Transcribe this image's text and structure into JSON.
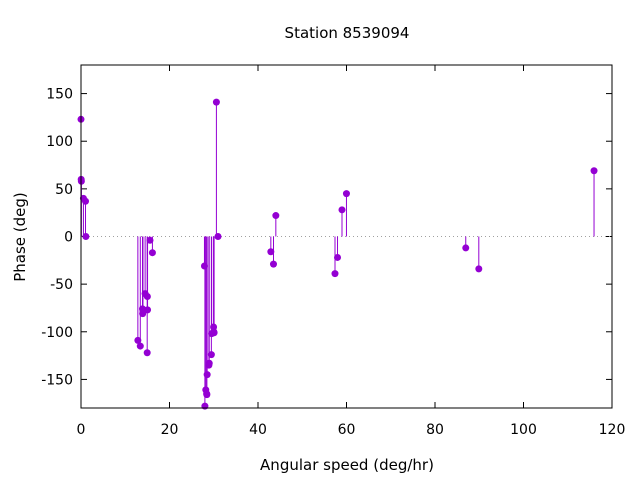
{
  "chart_data": {
    "type": "scatter",
    "style": "impulses-with-points",
    "title": "Station 8539094",
    "xlabel": "Angular speed (deg/hr)",
    "ylabel": "Phase (deg)",
    "xlim": [
      0,
      120
    ],
    "ylim": [
      -180,
      180
    ],
    "xticks": [
      0,
      20,
      40,
      60,
      80,
      100,
      120
    ],
    "yticks": [
      -150,
      -100,
      -50,
      0,
      50,
      100,
      150
    ],
    "zero_line": true,
    "grid": false,
    "legend": "none",
    "color": "#9400d3",
    "series": [
      {
        "x": [
          0.0,
          0.04,
          0.08,
          0.55,
          1.02,
          1.1,
          12.85,
          13.4,
          13.9,
          13.94,
          14.0,
          14.49,
          14.96,
          15.0,
          15.04,
          15.59,
          16.14,
          27.9,
          28.0,
          28.2,
          28.4,
          28.44,
          28.51,
          28.9,
          28.98,
          29.46,
          29.53,
          29.96,
          30.0,
          30.08,
          30.6,
          30.96,
          42.9,
          43.5,
          44.03,
          57.4,
          57.97,
          58.98,
          59.99,
          86.95,
          89.9,
          115.94
        ],
        "y": [
          123,
          60,
          58,
          40,
          37,
          0,
          -109,
          -115,
          -76,
          -81,
          -78,
          -60,
          -122,
          -63,
          -77,
          -4,
          -17,
          -31,
          -178,
          -161,
          -165,
          -166,
          -145,
          -135,
          -133,
          -124,
          -102,
          -95,
          -100,
          -101,
          141,
          0,
          -16,
          -29,
          22,
          -39,
          -22,
          28,
          45,
          -12,
          -34,
          69
        ]
      }
    ]
  }
}
